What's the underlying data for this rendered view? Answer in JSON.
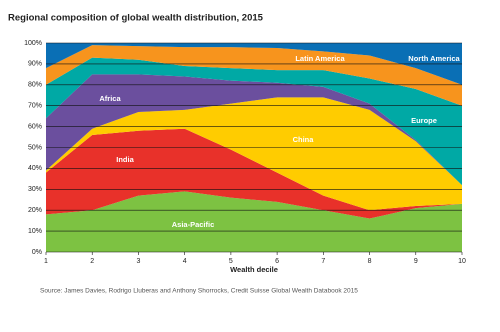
{
  "chart_data": {
    "type": "stacked-area",
    "title": "Regional composition of global wealth distribution, 2015",
    "x_label": "Wealth decile",
    "source": "Source: James Davies, Rodrigo Lluberas and Anthony Shorrocks, Credit Suisse Global Wealth Databook 2015",
    "x": [
      1,
      2,
      3,
      4,
      5,
      6,
      7,
      8,
      9,
      10
    ],
    "xlim": [
      1,
      10
    ],
    "xticks": [
      1,
      2,
      3,
      4,
      5,
      6,
      7,
      8,
      9,
      10
    ],
    "ylim": [
      0,
      100
    ],
    "yticks": [
      {
        "value": 0,
        "label": "0%"
      },
      {
        "value": 10,
        "label": "10%"
      },
      {
        "value": 20,
        "label": "20%"
      },
      {
        "value": 30,
        "label": "30%"
      },
      {
        "value": 40,
        "label": "40%"
      },
      {
        "value": 50,
        "label": "50%"
      },
      {
        "value": 60,
        "label": "60%"
      },
      {
        "value": 70,
        "label": "70%"
      },
      {
        "value": 80,
        "label": "80%"
      },
      {
        "value": 90,
        "label": "90%"
      },
      {
        "value": 100,
        "label": "100%"
      }
    ],
    "grid": true,
    "series": [
      {
        "name": "Asia-Pacific",
        "color": "#7dc242",
        "values": [
          18,
          20,
          27,
          29,
          26,
          24,
          20,
          16,
          21,
          23
        ]
      },
      {
        "name": "India",
        "color": "#e8312a",
        "values": [
          20,
          36,
          31,
          30,
          23,
          14,
          7,
          4,
          1,
          0
        ]
      },
      {
        "name": "China",
        "color": "#ffcc00",
        "values": [
          1,
          3,
          9,
          9,
          22,
          36,
          47,
          48,
          31,
          9
        ]
      },
      {
        "name": "Africa",
        "color": "#6b4f9e",
        "values": [
          25,
          26,
          18,
          16,
          11,
          7,
          5,
          3,
          0.5,
          0
        ]
      },
      {
        "name": "Europe",
        "color": "#00a9a5",
        "values": [
          16,
          8,
          7,
          5,
          6,
          6,
          8,
          12,
          24.5,
          38
        ]
      },
      {
        "name": "Latin America",
        "color": "#f7941d",
        "values": [
          8,
          6,
          6.5,
          9,
          10,
          10.6,
          9,
          11,
          10,
          10
        ]
      },
      {
        "name": "North America",
        "color": "#0a6fb5",
        "values": [
          12,
          1,
          1.5,
          2,
          2,
          2.4,
          4,
          6,
          12,
          20
        ]
      }
    ]
  }
}
